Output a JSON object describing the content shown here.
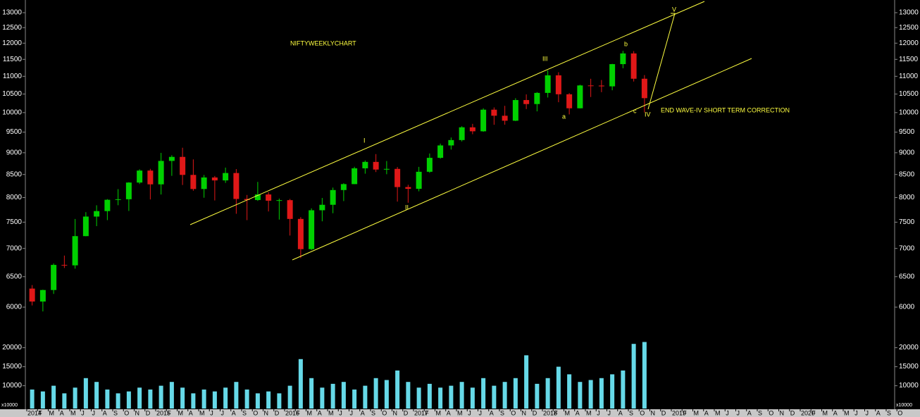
{
  "chart_data": {
    "type": "candlestick",
    "title": "NIFTYWEEKLYCHART",
    "x": [
      "2014-01",
      "2014-02",
      "2014-03",
      "2014-04",
      "2014-05",
      "2014-06",
      "2014-07",
      "2014-08",
      "2014-09",
      "2014-10",
      "2014-11",
      "2014-12",
      "2015-01",
      "2015-02",
      "2015-03",
      "2015-04",
      "2015-05",
      "2015-06",
      "2015-07",
      "2015-08",
      "2015-09",
      "2015-10",
      "2015-11",
      "2015-12",
      "2016-01",
      "2016-02",
      "2016-03",
      "2016-04",
      "2016-05",
      "2016-06",
      "2016-07",
      "2016-08",
      "2016-09",
      "2016-10",
      "2016-11",
      "2016-12",
      "2017-01",
      "2017-02",
      "2017-03",
      "2017-04",
      "2017-05",
      "2017-06",
      "2017-07",
      "2017-08",
      "2017-09",
      "2017-10",
      "2017-11",
      "2017-12",
      "2018-01",
      "2018-02",
      "2018-03",
      "2018-04",
      "2018-05",
      "2018-06",
      "2018-07",
      "2018-08",
      "2018-09",
      "2018-10"
    ],
    "open": [
      6300,
      6089,
      6276,
      6704,
      6696,
      7230,
      7611,
      7721,
      7954,
      7965,
      8322,
      8588,
      8283,
      8809,
      8902,
      8491,
      8182,
      8434,
      8369,
      8533,
      7971,
      7949,
      8066,
      7935,
      7946,
      7564,
      6987,
      7738,
      7850,
      8160,
      8288,
      8639,
      8786,
      8611,
      8626,
      8224,
      8186,
      8561,
      8880,
      9174,
      9304,
      9621,
      9521,
      10077,
      9918,
      9789,
      10335,
      10227,
      10531,
      11028,
      10493,
      10114,
      10739,
      10736,
      10714,
      11357,
      11681,
      10930
    ],
    "high": [
      6358,
      6282,
      6730,
      6870,
      7563,
      7700,
      7840,
      7968,
      8180,
      8330,
      8617,
      8627,
      8996,
      8941,
      9119,
      8844,
      8490,
      8467,
      8655,
      8622,
      8055,
      8336,
      8116,
      7979,
      7972,
      7600,
      7777,
      7992,
      8213,
      8308,
      8674,
      8819,
      8968,
      8806,
      8669,
      8274,
      8672,
      8982,
      9218,
      9367,
      9649,
      9709,
      10115,
      10137,
      10179,
      10385,
      10490,
      10552,
      11171,
      11118,
      10525,
      10759,
      10929,
      10893,
      11366,
      11760,
      11752,
      11035
    ],
    "low": [
      6027,
      5933,
      6212,
      6650,
      6638,
      7227,
      7422,
      7540,
      7841,
      7724,
      8290,
      7961,
      8065,
      8470,
      8269,
      8145,
      7997,
      7940,
      8315,
      7667,
      7540,
      7930,
      7714,
      7551,
      7241,
      6825,
      6970,
      7517,
      7678,
      7927,
      8287,
      8518,
      8555,
      8506,
      7916,
      7893,
      8133,
      8537,
      8860,
      9075,
      9270,
      9448,
      9510,
      9685,
      9688,
      9780,
      10094,
      10033,
      10404,
      10276,
      9952,
      10111,
      10418,
      10551,
      10604,
      11235,
      10850,
      10005
    ],
    "close": [
      6089,
      6276,
      6704,
      6696,
      7230,
      7611,
      7721,
      7954,
      7965,
      8322,
      8588,
      8283,
      8809,
      8902,
      8491,
      8182,
      8434,
      8369,
      8533,
      7971,
      7949,
      8066,
      7935,
      7946,
      7564,
      6987,
      7738,
      7850,
      8160,
      8288,
      8639,
      8786,
      8611,
      8626,
      8224,
      8186,
      8561,
      8880,
      9174,
      9304,
      9621,
      9521,
      10077,
      9918,
      9789,
      10335,
      10227,
      10531,
      11028,
      10493,
      10114,
      10739,
      10736,
      10714,
      11357,
      11681,
      10930,
      10387
    ],
    "up_color": "#00d000",
    "down_color": "#e01818",
    "log_y": true,
    "ylim": [
      5740,
      13440
    ],
    "yticks": [
      6000,
      6500,
      7000,
      7500,
      8000,
      8500,
      9000,
      9500,
      10000,
      10500,
      11000,
      11500,
      12000,
      12500,
      13000
    ],
    "xticks": [
      {
        "value": "2014-01",
        "label": "2014"
      },
      {
        "value": "2014-02",
        "label": "F"
      },
      {
        "value": "2014-03",
        "label": "M"
      },
      {
        "value": "2014-04",
        "label": "A"
      },
      {
        "value": "2014-05",
        "label": "M"
      },
      {
        "value": "2014-06",
        "label": "J"
      },
      {
        "value": "2014-07",
        "label": "J"
      },
      {
        "value": "2014-08",
        "label": "A"
      },
      {
        "value": "2014-09",
        "label": "S"
      },
      {
        "value": "2014-10",
        "label": "O"
      },
      {
        "value": "2014-11",
        "label": "N"
      },
      {
        "value": "2014-12",
        "label": "D"
      },
      {
        "value": "2015-01",
        "label": "2015"
      },
      {
        "value": "2015-02",
        "label": "F"
      },
      {
        "value": "2015-03",
        "label": "M"
      },
      {
        "value": "2015-04",
        "label": "A"
      },
      {
        "value": "2015-05",
        "label": "M"
      },
      {
        "value": "2015-06",
        "label": "J"
      },
      {
        "value": "2015-07",
        "label": "J"
      },
      {
        "value": "2015-08",
        "label": "A"
      },
      {
        "value": "2015-09",
        "label": "S"
      },
      {
        "value": "2015-10",
        "label": "O"
      },
      {
        "value": "2015-11",
        "label": "N"
      },
      {
        "value": "2015-12",
        "label": "D"
      },
      {
        "value": "2016-01",
        "label": "2016"
      },
      {
        "value": "2016-02",
        "label": "F"
      },
      {
        "value": "2016-03",
        "label": "M"
      },
      {
        "value": "2016-04",
        "label": "A"
      },
      {
        "value": "2016-05",
        "label": "M"
      },
      {
        "value": "2016-06",
        "label": "J"
      },
      {
        "value": "2016-07",
        "label": "J"
      },
      {
        "value": "2016-08",
        "label": "A"
      },
      {
        "value": "2016-09",
        "label": "S"
      },
      {
        "value": "2016-10",
        "label": "O"
      },
      {
        "value": "2016-11",
        "label": "N"
      },
      {
        "value": "2016-12",
        "label": "D"
      },
      {
        "value": "2017-01",
        "label": "2017"
      },
      {
        "value": "2017-02",
        "label": "F"
      },
      {
        "value": "2017-03",
        "label": "M"
      },
      {
        "value": "2017-04",
        "label": "A"
      },
      {
        "value": "2017-05",
        "label": "M"
      },
      {
        "value": "2017-06",
        "label": "J"
      },
      {
        "value": "2017-07",
        "label": "J"
      },
      {
        "value": "2017-08",
        "label": "A"
      },
      {
        "value": "2017-09",
        "label": "S"
      },
      {
        "value": "2017-10",
        "label": "O"
      },
      {
        "value": "2017-11",
        "label": "N"
      },
      {
        "value": "2017-12",
        "label": "D"
      },
      {
        "value": "2018-01",
        "label": "2018"
      },
      {
        "value": "2018-02",
        "label": "F"
      },
      {
        "value": "2018-03",
        "label": "M"
      },
      {
        "value": "2018-04",
        "label": "A"
      },
      {
        "value": "2018-05",
        "label": "M"
      },
      {
        "value": "2018-06",
        "label": "J"
      },
      {
        "value": "2018-07",
        "label": "J"
      },
      {
        "value": "2018-08",
        "label": "A"
      },
      {
        "value": "2018-09",
        "label": "S"
      },
      {
        "value": "2018-10",
        "label": "O"
      },
      {
        "value": "2018-11",
        "label": "N"
      },
      {
        "value": "2018-12",
        "label": "D"
      },
      {
        "value": "2019-01",
        "label": "2019"
      },
      {
        "value": "2019-02",
        "label": "F"
      },
      {
        "value": "2019-03",
        "label": "M"
      },
      {
        "value": "2019-04",
        "label": "A"
      },
      {
        "value": "2019-05",
        "label": "M"
      },
      {
        "value": "2019-06",
        "label": "J"
      },
      {
        "value": "2019-07",
        "label": "J"
      },
      {
        "value": "2019-08",
        "label": "A"
      },
      {
        "value": "2019-09",
        "label": "S"
      },
      {
        "value": "2019-10",
        "label": "O"
      },
      {
        "value": "2019-11",
        "label": "N"
      },
      {
        "value": "2019-12",
        "label": "D"
      },
      {
        "value": "2020-01",
        "label": "2020"
      },
      {
        "value": "2020-02",
        "label": "F"
      },
      {
        "value": "2020-03",
        "label": "M"
      },
      {
        "value": "2020-04",
        "label": "A"
      },
      {
        "value": "2020-05",
        "label": "M"
      },
      {
        "value": "2020-06",
        "label": "J"
      },
      {
        "value": "2020-07",
        "label": "J"
      },
      {
        "value": "2020-08",
        "label": "A"
      },
      {
        "value": "2020-09",
        "label": "S"
      },
      {
        "value": "2020-10",
        "label": "O"
      }
    ],
    "volume": {
      "values": [
        9000,
        8500,
        10000,
        8000,
        9500,
        12000,
        11000,
        9000,
        8000,
        8500,
        9500,
        9000,
        10000,
        11000,
        9500,
        8000,
        9000,
        8500,
        9500,
        11000,
        9000,
        8000,
        8500,
        8000,
        10000,
        17000,
        12000,
        9500,
        10500,
        11000,
        9000,
        10000,
        12000,
        11500,
        14000,
        11000,
        9500,
        10500,
        9500,
        10000,
        11000,
        9500,
        12000,
        10000,
        11000,
        12000,
        18000,
        10500,
        12000,
        15000,
        13000,
        11000,
        11500,
        12000,
        13000,
        14000,
        21000,
        21500
      ],
      "color": "#66d9e8",
      "ylim": [
        4000,
        24000
      ],
      "yticks": [
        10000,
        15000,
        20000
      ],
      "unit_label": "x10000"
    },
    "annotations": [
      {
        "text": "I"
      },
      {
        "text": "II"
      },
      {
        "text": "III"
      },
      {
        "text": "a"
      },
      {
        "text": "b"
      },
      {
        "text": "c"
      },
      {
        "text": "IV"
      },
      {
        "text": "V"
      },
      {
        "text": "END WAVE-IV  SHORT TERM CORRECTION"
      }
    ]
  }
}
